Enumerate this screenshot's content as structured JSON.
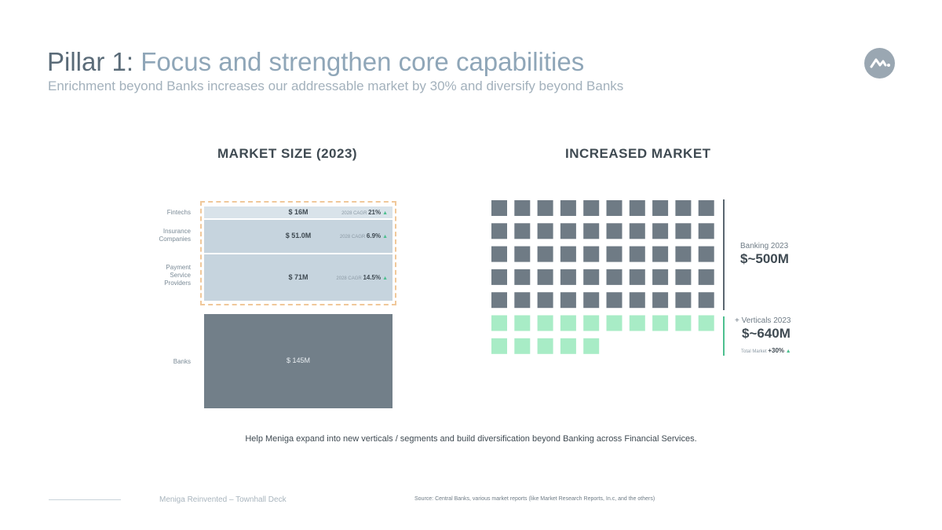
{
  "slide": {
    "title_prefix": "Pillar 1:",
    "title_rest": " Focus and strengthen core capabilities",
    "subtitle": "Enrichment beyond Banks increases our addressable market by 30% and diversify beyond Banks",
    "caption": "Help Meniga expand into new verticals / segments and build diversification beyond Banking across Financial Services.",
    "footer_deck": "Meniga Reinvented – Townhall Deck",
    "footer_source": "Source: Central Banks, various market reports (like Market Research Reports, In.c, and the others)",
    "logo_icon": "meniga-logo-icon"
  },
  "colors": {
    "banks": "#727f89",
    "verticals_light": "#d9e3ea",
    "verticals_mid": "#c6d4de",
    "waffle_banking": "#6f7b85",
    "waffle_verticals": "#a8ecc6",
    "accent_green": "#4dbf8f",
    "dashed_border": "#f0c89a"
  },
  "chart_data": [
    {
      "type": "bar",
      "title": "MARKET SIZE (2023)",
      "stacked": true,
      "categories": [
        "Fintechs",
        "Insurance Companies",
        "Payment Service Providers",
        "Banks"
      ],
      "label_lines": [
        [
          "Fintechs"
        ],
        [
          "Insurance",
          "Companies"
        ],
        [
          "Payment",
          "Service",
          "Providers"
        ],
        [
          "Banks"
        ]
      ],
      "values": [
        16,
        51.0,
        71,
        145
      ],
      "value_labels": [
        "$ 16M",
        "$ 51.0M",
        "$ 71M",
        "$ 145M"
      ],
      "cagr_prefix": [
        "2028 CAGR",
        "2028 CAGR",
        "2028 CAGR",
        ""
      ],
      "cagr": [
        "21%",
        "6.9%",
        "14.5%",
        ""
      ],
      "unit": "$M"
    },
    {
      "type": "waffle",
      "title": "INCREASED MARKET",
      "columns": 10,
      "series": [
        {
          "name": "Banking 2023",
          "count": 50,
          "value_label": "$~500M"
        },
        {
          "name": "+ Verticals 2023",
          "count": 15,
          "value_label": "$~640M"
        }
      ],
      "total_market_label": "Total Market",
      "total_market_change": "+30%"
    }
  ]
}
